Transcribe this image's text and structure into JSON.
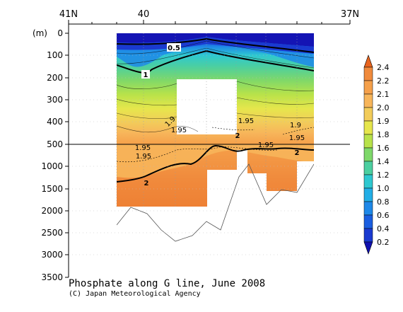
{
  "chart_data": {
    "type": "contour",
    "title": "Phosphate along G line, June 2008",
    "credit": "(C) Japan Meteorological Agency",
    "x_axis_top_labels": [
      "41N",
      "40",
      "37N"
    ],
    "y_unit": "(m)",
    "y_ticks_upper": [
      0,
      100,
      200,
      300,
      400,
      500
    ],
    "y_ticks_lower": [
      1000,
      1500,
      2000,
      2500,
      3000,
      3500
    ],
    "ylim_upper": [
      0,
      500
    ],
    "ylim_lower": [
      500,
      3500
    ],
    "contour_labels": [
      "0.5",
      "1",
      "1.9",
      "1.95",
      "1.95",
      "1.95",
      "1.95",
      "2",
      "1.9",
      "1.95",
      "2",
      "2",
      "1.95"
    ],
    "colorbar": {
      "ticks": [
        "2.4",
        "2.2",
        "2.1",
        "2.0",
        "1.9",
        "1.8",
        "1.6",
        "1.4",
        "1.2",
        "1.0",
        "0.8",
        "0.6",
        "0.4",
        "0.2"
      ],
      "colors": [
        "#e8641e",
        "#f08a3c",
        "#f5a04a",
        "#f7b55a",
        "#f2cc5a",
        "#e6e64c",
        "#b8e24a",
        "#7ed86a",
        "#4ccfa0",
        "#2ec8d0",
        "#22aee6",
        "#1e88e8",
        "#1a5ee0",
        "#1a3ad0",
        "#1010b0"
      ]
    }
  }
}
